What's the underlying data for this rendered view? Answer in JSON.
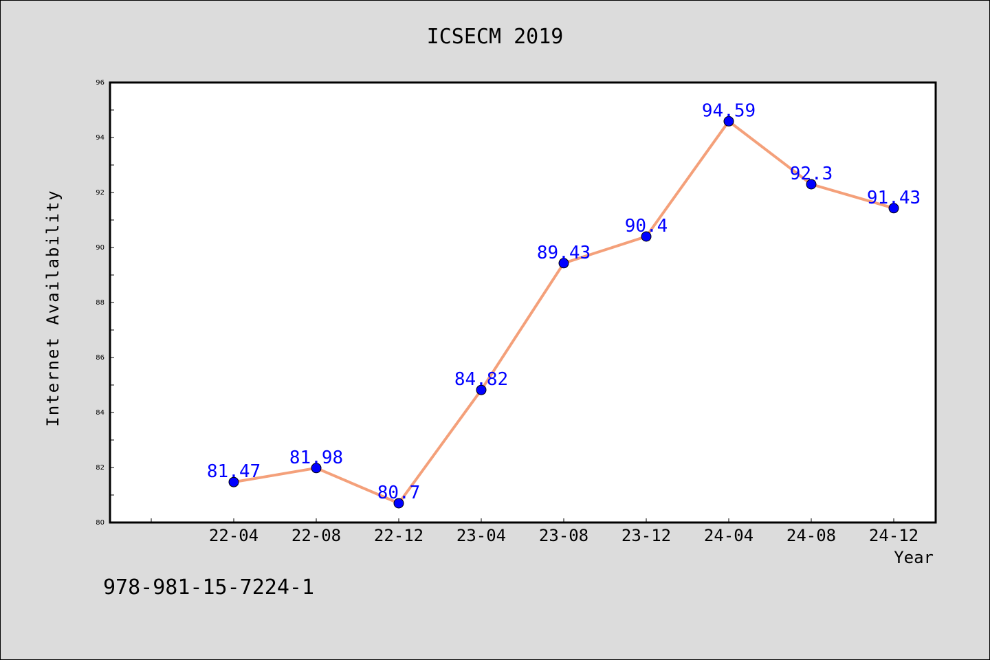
{
  "chart_data": {
    "type": "line",
    "title": "ICSECM 2019",
    "xlabel": "Year",
    "ylabel": "Internet Availability",
    "categories": [
      "22-04",
      "22-08",
      "22-12",
      "23-04",
      "23-08",
      "23-12",
      "24-04",
      "24-08",
      "24-12"
    ],
    "series": [
      {
        "values": [
          81.47,
          81.98,
          80.7,
          84.82,
          89.43,
          90.4,
          94.59,
          92.3,
          91.43
        ],
        "data_labels": [
          "81.47",
          "81.98",
          "80.7",
          "84.82",
          "89.43",
          "90.4",
          "94.59",
          "92.3",
          "91.43"
        ],
        "line_color": "#f4a07a",
        "marker_color": "#0000ff",
        "label_color": "#0000ff"
      }
    ],
    "ylim": [
      80,
      96
    ],
    "yticks": [
      "80",
      "82",
      "84",
      "86",
      "88",
      "90",
      "92",
      "94",
      "96"
    ],
    "grid": false,
    "legend": "none"
  },
  "footer": {
    "isbn": "978-981-15-7224-1"
  },
  "colors": {
    "background": "#dcdcdc",
    "plot_background": "#ffffff"
  }
}
